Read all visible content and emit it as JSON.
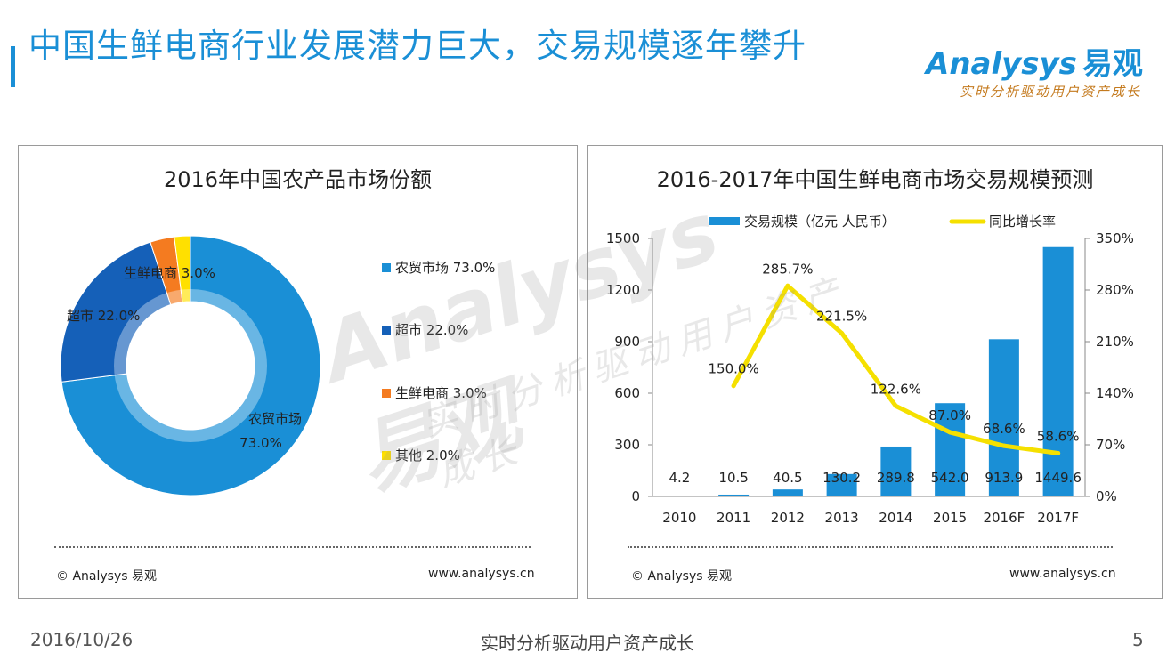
{
  "slide": {
    "title": "中国生鲜电商行业发展潜力巨大，交易规模逐年攀升",
    "date": "2016/10/26",
    "slogan": "实时分析驱动用户资产成长",
    "page": "5"
  },
  "logo": {
    "brand": "Analysys",
    "brand_cn": "易观",
    "slogan": "实时分析驱动用户资产成长"
  },
  "watermark": {
    "brand": "Analysys 易观",
    "slogan": "实时分析驱动用户资产成长"
  },
  "left_panel": {
    "copyright": "© Analysys 易观",
    "site": "www.analysys.cn"
  },
  "right_panel": {
    "copyright": "© Analysys 易观",
    "site": "www.analysys.cn"
  },
  "chart_data": [
    {
      "type": "pie",
      "title": "2016年中国农产品市场份额",
      "donut": true,
      "legend_position": "right",
      "slices": [
        {
          "label": "农贸市场",
          "value": 73.0,
          "value_label": "73.0%",
          "color": "#1a8fd6"
        },
        {
          "label": "超市",
          "value": 22.0,
          "value_label": "22.0%",
          "color": "#1560b8"
        },
        {
          "label": "生鲜电商",
          "value": 3.0,
          "value_label": "3.0%",
          "color": "#f47b20"
        },
        {
          "label": "其他",
          "value": 2.0,
          "value_label": "2.0%",
          "color": "#ffe000"
        }
      ]
    },
    {
      "type": "bar",
      "title": "2016-2017年中国生鲜电商市场交易规模预测",
      "categories": [
        "2010",
        "2011",
        "2012",
        "2013",
        "2014",
        "2015",
        "2016F",
        "2017F"
      ],
      "legend_position": "top",
      "series": [
        {
          "name": "交易规模（亿元 人民币）",
          "type": "bar",
          "axis": "left",
          "color": "#1a8fd6",
          "values": [
            4.2,
            10.5,
            40.5,
            130.2,
            289.8,
            542.0,
            913.9,
            1449.6
          ],
          "labels": [
            "4.2",
            "10.5",
            "40.5",
            "130.2",
            "289.8",
            "542.0",
            "913.9",
            "1449.6"
          ]
        },
        {
          "name": "同比增长率",
          "type": "line",
          "axis": "right",
          "color": "#f5e000",
          "values": [
            null,
            150.0,
            285.7,
            221.5,
            122.6,
            87.0,
            68.6,
            58.6
          ],
          "labels": [
            "",
            "150.0%",
            "285.7%",
            "221.5%",
            "122.6%",
            "87.0%",
            "68.6%",
            "58.6%"
          ]
        }
      ],
      "y_left": {
        "min": 0,
        "max": 1500,
        "ticks": [
          "0",
          "300",
          "600",
          "900",
          "1200",
          "1500"
        ]
      },
      "y_right": {
        "min": 0,
        "max": 350,
        "ticks": [
          "0%",
          "70%",
          "140%",
          "210%",
          "280%",
          "350%"
        ]
      },
      "grid": false
    }
  ]
}
